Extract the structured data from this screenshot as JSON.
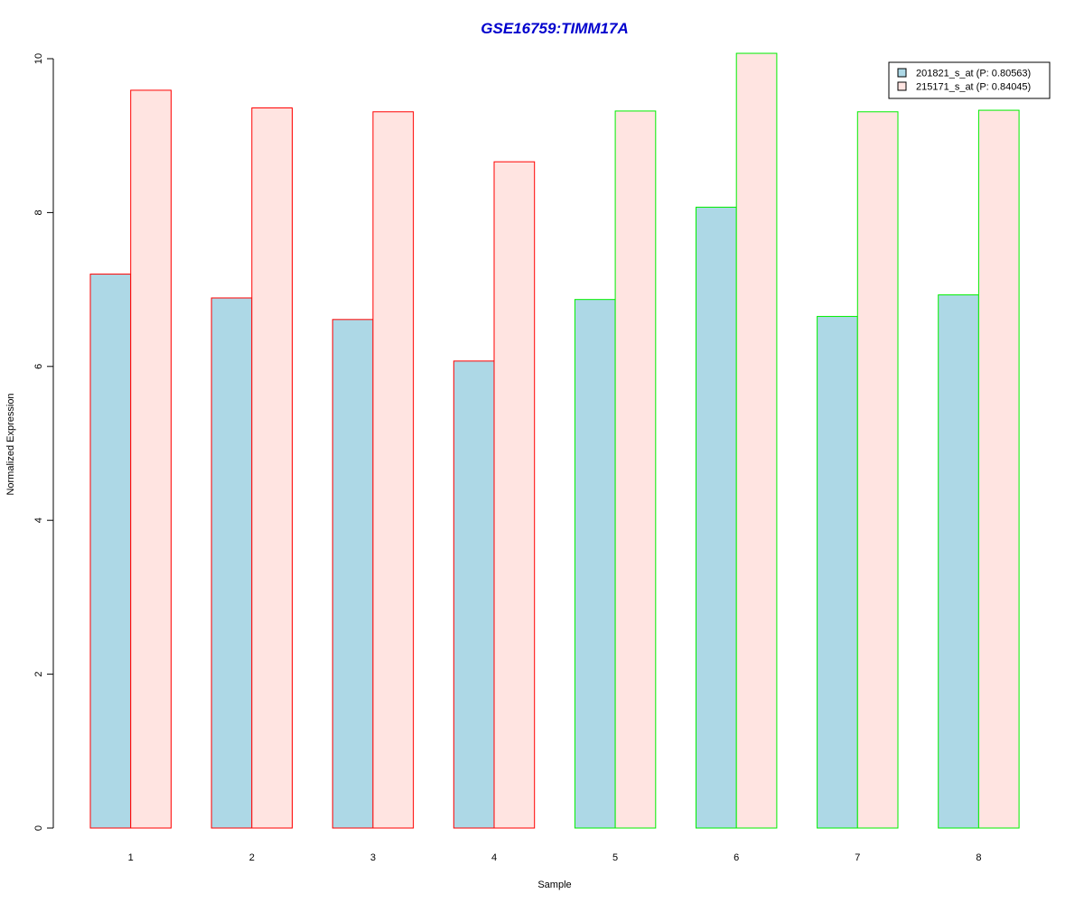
{
  "chart_data": {
    "type": "bar",
    "title": "GSE16759:TIMM17A",
    "xlabel": "Sample",
    "ylabel": "Normalized Expression",
    "categories": [
      "1",
      "2",
      "3",
      "4",
      "5",
      "6",
      "7",
      "8"
    ],
    "yticks": [
      "0",
      "2",
      "4",
      "6",
      "8",
      "10"
    ],
    "ylim": [
      0,
      10
    ],
    "series": [
      {
        "name": "201821_s_at (P: 0.80563)",
        "fill": "#add8e6",
        "values": [
          7.2,
          6.89,
          6.61,
          6.07,
          6.87,
          8.07,
          6.65,
          6.93
        ]
      },
      {
        "name": "215171_s_at (P: 0.84045)",
        "fill": "#ffe4e1",
        "values": [
          9.59,
          9.36,
          9.31,
          8.66,
          9.32,
          10.07,
          9.31,
          9.33
        ]
      }
    ],
    "group_border_colors": [
      "#ff0000",
      "#ff0000",
      "#ff0000",
      "#ff0000",
      "#00ee00",
      "#00ee00",
      "#00ee00",
      "#00ee00"
    ],
    "title_color": "#0000cd",
    "legend_position": "top-right",
    "grid": false
  }
}
